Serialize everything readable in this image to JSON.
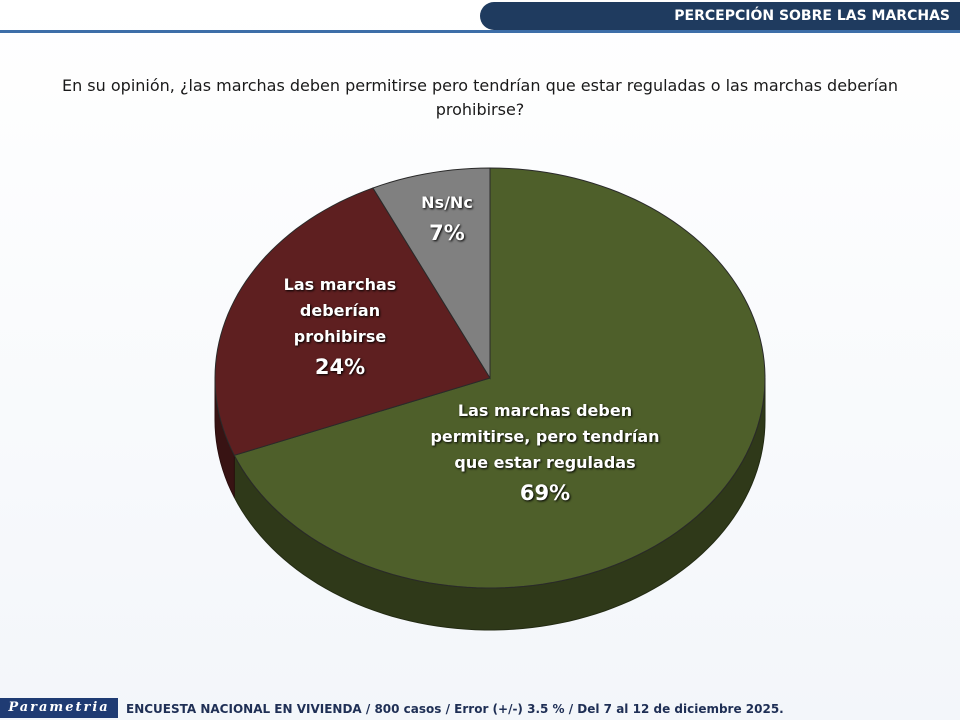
{
  "header": {
    "title": "PERCEPCIÓN SOBRE LAS MARCHAS"
  },
  "chart_data": {
    "type": "pie",
    "title": "En su opinión, ¿las marchas deben permitirse pero tendrían que estar reguladas o las marchas deberían prohibirse?",
    "categories": [
      "Las marchas deben permitirse, pero tendrían que estar reguladas",
      "Las marchas deberían prohibirse",
      "Ns/Nc"
    ],
    "values": [
      69,
      24,
      7
    ],
    "value_labels": [
      "69%",
      "24%",
      "7%"
    ],
    "colors": [
      "#4e5f2a",
      "#5e1f20",
      "#808080"
    ]
  },
  "footer": {
    "logo": "Parametria",
    "note": "ENCUESTA NACIONAL EN VIVIENDA / 800 casos / Error (+/-) 3.5 % / Del 7 al 12 de diciembre 2025."
  }
}
